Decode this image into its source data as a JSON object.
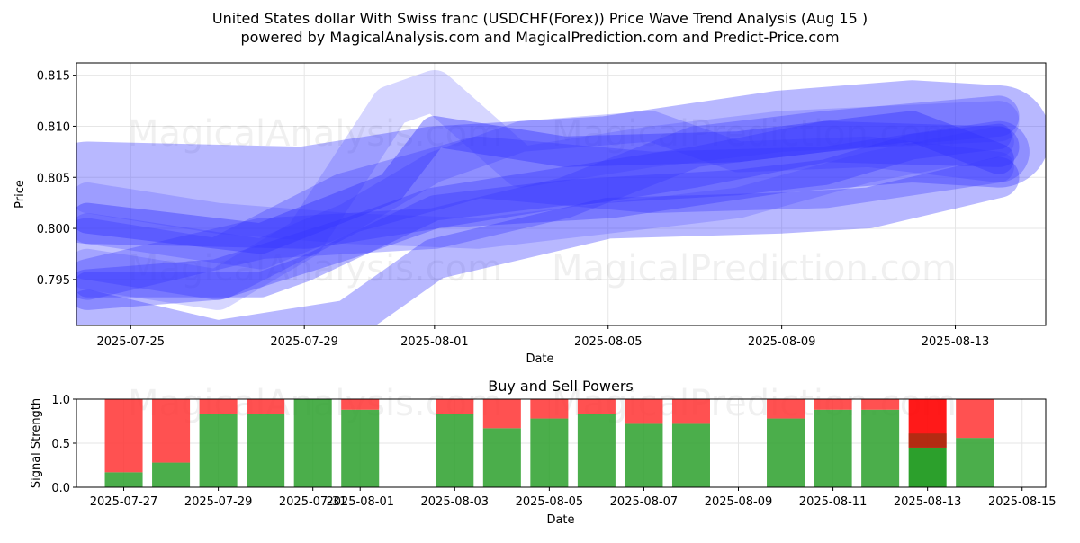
{
  "title_line1": "United States dollar With Swiss franc (USDCHF(Forex)) Price Wave Trend Analysis (Aug 15 )",
  "title_line2": "powered by MagicalAnalysis.com and MagicalPrediction.com and Predict-Price.com",
  "watermarks": [
    "MagicalAnalysis.com",
    "MagicalPrediction.com"
  ],
  "colors": {
    "band": "#3333ff",
    "buy": "#2ca02c",
    "sell": "#ff3333",
    "sell_strong": "#ff0000",
    "grid": "#e6e6e6"
  },
  "chart_data": [
    {
      "type": "area",
      "xlabel": "Date",
      "ylabel": "Price",
      "ylim": [
        0.7905,
        0.8162
      ],
      "xlim": [
        "2025-07-23T18:00",
        "2025-08-15T02:00"
      ],
      "x_ticks": [
        "2025-07-25",
        "2025-07-29",
        "2025-08-01",
        "2025-08-05",
        "2025-08-09",
        "2025-08-13"
      ],
      "y_ticks": [
        0.795,
        0.8,
        0.805,
        0.81,
        0.815
      ],
      "grid": true,
      "bands": [
        {
          "points": [
            [
              "2025-07-24",
              0.8035
            ],
            [
              "2025-07-29",
              0.803
            ],
            [
              "2025-08-01",
              0.805
            ],
            [
              "2025-08-05",
              0.806
            ],
            [
              "2025-08-09",
              0.8085
            ],
            [
              "2025-08-12",
              0.8095
            ],
            [
              "2025-08-14",
              0.809
            ]
          ],
          "width": 0.01,
          "opacity": 0.35
        },
        {
          "points": [
            [
              "2025-07-24",
              0.798
            ],
            [
              "2025-07-27",
              0.796
            ],
            [
              "2025-07-30",
              0.8025
            ],
            [
              "2025-08-02",
              0.806
            ],
            [
              "2025-08-06",
              0.8045
            ],
            [
              "2025-08-10",
              0.805
            ],
            [
              "2025-08-14",
              0.8075
            ]
          ],
          "width": 0.006,
          "opacity": 0.3
        },
        {
          "points": [
            [
              "2025-07-24",
              0.794
            ],
            [
              "2025-07-27",
              0.795
            ],
            [
              "2025-07-30",
              0.799
            ],
            [
              "2025-08-01",
              0.802
            ],
            [
              "2025-08-04",
              0.804
            ],
            [
              "2025-08-07",
              0.806
            ],
            [
              "2025-08-10",
              0.8085
            ],
            [
              "2025-08-14",
              0.808
            ]
          ],
          "width": 0.004,
          "opacity": 0.35
        },
        {
          "points": [
            [
              "2025-07-24",
              0.801
            ],
            [
              "2025-07-28",
              0.799
            ],
            [
              "2025-07-31",
              0.804
            ],
            [
              "2025-08-01",
              0.8095
            ],
            [
              "2025-08-04",
              0.8075
            ],
            [
              "2025-08-08",
              0.808
            ],
            [
              "2025-08-12",
              0.81
            ],
            [
              "2025-08-14",
              0.8068
            ]
          ],
          "width": 0.003,
          "opacity": 0.4
        },
        {
          "points": [
            [
              "2025-07-24",
              0.795
            ],
            [
              "2025-07-28",
              0.799
            ],
            [
              "2025-08-01",
              0.8
            ],
            [
              "2025-08-04",
              0.803
            ],
            [
              "2025-08-07",
              0.808
            ],
            [
              "2025-08-10",
              0.8095
            ],
            [
              "2025-08-14",
              0.811
            ]
          ],
          "width": 0.004,
          "opacity": 0.3
        },
        {
          "points": [
            [
              "2025-07-24",
              0.796
            ],
            [
              "2025-07-27",
              0.794
            ],
            [
              "2025-07-29",
              0.799
            ],
            [
              "2025-07-31",
              0.812
            ],
            [
              "2025-08-01",
              0.8135
            ],
            [
              "2025-08-03",
              0.806
            ],
            [
              "2025-08-06",
              0.808
            ],
            [
              "2025-08-09",
              0.8095
            ],
            [
              "2025-08-14",
              0.8105
            ]
          ],
          "width": 0.004,
          "opacity": 0.2
        },
        {
          "points": [
            [
              "2025-07-24",
              0.7945
            ],
            [
              "2025-07-28",
              0.7945
            ],
            [
              "2025-07-29",
              0.796
            ],
            [
              "2025-08-01",
              0.802
            ],
            [
              "2025-08-04",
              0.8035
            ],
            [
              "2025-08-06",
              0.804
            ],
            [
              "2025-08-08",
              0.8045
            ],
            [
              "2025-08-10",
              0.8055
            ],
            [
              "2025-08-12",
              0.808
            ],
            [
              "2025-08-14",
              0.809
            ]
          ],
          "width": 0.0025,
          "opacity": 0.35
        },
        {
          "points": [
            [
              "2025-07-24",
              0.792
            ],
            [
              "2025-07-27",
              0.789
            ],
            [
              "2025-07-30",
              0.791
            ],
            [
              "2025-08-01",
              0.797
            ],
            [
              "2025-08-05",
              0.801
            ],
            [
              "2025-08-09",
              0.8015
            ],
            [
              "2025-08-11",
              0.802
            ],
            [
              "2025-08-13",
              0.804
            ],
            [
              "2025-08-14",
              0.805
            ]
          ],
          "width": 0.004,
          "opacity": 0.35
        },
        {
          "points": [
            [
              "2025-07-24",
              0.8
            ],
            [
              "2025-07-28",
              0.7975
            ],
            [
              "2025-07-30",
              0.801
            ],
            [
              "2025-08-01",
              0.806
            ],
            [
              "2025-08-03",
              0.809
            ],
            [
              "2025-08-06",
              0.81
            ],
            [
              "2025-08-08",
              0.807
            ],
            [
              "2025-08-11",
              0.8075
            ],
            [
              "2025-08-14",
              0.806
            ]
          ],
          "width": 0.003,
          "opacity": 0.25
        },
        {
          "points": [
            [
              "2025-07-24",
              0.803
            ],
            [
              "2025-07-27",
              0.801
            ],
            [
              "2025-07-30",
              0.8
            ],
            [
              "2025-08-02",
              0.7995
            ],
            [
              "2025-08-05",
              0.801
            ],
            [
              "2025-08-08",
              0.8025
            ],
            [
              "2025-08-11",
              0.806
            ],
            [
              "2025-08-14",
              0.8085
            ]
          ],
          "width": 0.003,
          "opacity": 0.2
        }
      ]
    },
    {
      "type": "bar",
      "title": "Buy and Sell Powers",
      "xlabel": "Date",
      "ylabel": "Signal Strength",
      "ylim": [
        0,
        1
      ],
      "xlim": [
        "2025-07-26T00:00",
        "2025-08-15T12:00"
      ],
      "x_ticks": [
        "2025-07-27",
        "2025-07-29",
        "2025-07-31",
        "2025-08-01",
        "2025-08-03",
        "2025-08-05",
        "2025-08-07",
        "2025-08-09",
        "2025-08-11",
        "2025-08-13",
        "2025-08-15"
      ],
      "x_tick_labels": [
        "2025-07-27",
        "2025-07-29",
        "2025-07-31",
        "2025-08-01",
        "2025-08-03",
        "2025-08-05",
        "2025-08-07",
        "2025-08-09",
        "2025-08-11",
        "2025-08-13",
        "2025-08-15"
      ],
      "y_ticks": [
        0.0,
        0.5,
        1.0
      ],
      "grid": true,
      "dates": [
        "2025-07-27",
        "2025-07-28",
        "2025-07-29",
        "2025-07-30",
        "2025-07-31",
        "2025-08-01",
        "2025-08-03",
        "2025-08-04",
        "2025-08-05",
        "2025-08-06",
        "2025-08-07",
        "2025-08-08",
        "2025-08-10",
        "2025-08-11",
        "2025-08-12",
        "2025-08-13",
        "2025-08-14"
      ],
      "series": [
        {
          "name": "buy",
          "values": [
            0.17,
            0.28,
            0.83,
            0.83,
            1.0,
            0.88,
            0.83,
            0.67,
            0.78,
            0.83,
            0.72,
            0.72,
            0.78,
            0.88,
            0.88,
            0.45,
            0.56
          ]
        },
        {
          "name": "sell",
          "values": [
            0.83,
            0.72,
            0.17,
            0.17,
            0.0,
            0.12,
            0.17,
            0.33,
            0.22,
            0.17,
            0.28,
            0.28,
            0.22,
            0.12,
            0.12,
            0.55,
            0.44
          ]
        }
      ],
      "highlight": {
        "date": "2025-08-13",
        "buy_solid": 0.45,
        "sell_dark_from": 0.45,
        "sell_dark_to": 0.61
      }
    }
  ]
}
